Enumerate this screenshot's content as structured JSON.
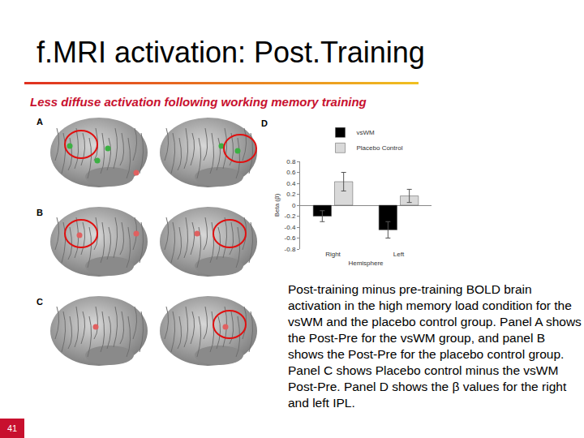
{
  "header": {
    "title": "f.MRI activation: Post.Training",
    "subtitle": "Less diffuse activation following working memory training"
  },
  "panels": [
    "A",
    "B",
    "C",
    "D"
  ],
  "caption": "Post-training minus pre-training BOLD brain activation in the high memory load condition for the vsWM and the placebo control group. Panel A shows the Post-Pre for the vsWM group, and panel B shows the Post-Pre for the placebo control group. Panel C shows Placebo control minus the vsWM Post-Pre. Panel D shows the β values for the right and left IPL.",
  "page_number": "41",
  "chart_data": {
    "type": "bar",
    "categories": [
      "Right",
      "Left"
    ],
    "series": [
      {
        "name": "vsWM",
        "color": "#000000",
        "values": [
          -0.2,
          -0.45
        ],
        "errors": [
          0.1,
          0.15
        ]
      },
      {
        "name": "Placebo Control",
        "color": "#d9d9d9",
        "values": [
          0.43,
          0.17
        ],
        "errors": [
          0.17,
          0.12
        ]
      }
    ],
    "xlabel": "Hemisphere",
    "ylabel": "Beta (β)",
    "ylim": [
      -0.8,
      0.8
    ],
    "yticks": [
      -0.8,
      -0.6,
      -0.4,
      -0.2,
      0,
      0.2,
      0.4,
      0.6,
      0.8
    ],
    "legend": "top",
    "grid": false
  }
}
